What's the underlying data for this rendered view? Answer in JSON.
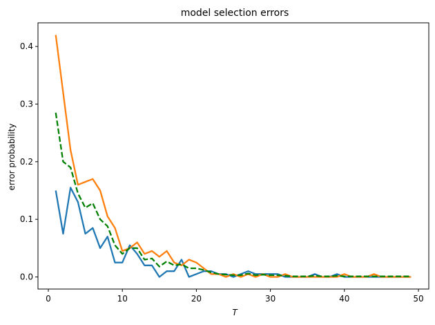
{
  "chart_data": {
    "type": "line",
    "title": "model selection errors",
    "xlabel": "T",
    "ylabel": "error probability",
    "xlim": [
      -1.4,
      51.4
    ],
    "ylim": [
      -0.021,
      0.441
    ],
    "xticks": [
      0,
      10,
      20,
      30,
      40,
      50
    ],
    "yticks": [
      0.0,
      0.1,
      0.2,
      0.3,
      0.4
    ],
    "xtick_labels": [
      "0",
      "10",
      "20",
      "30",
      "40",
      "50"
    ],
    "ytick_labels": [
      "0.0",
      "0.1",
      "0.2",
      "0.3",
      "0.4"
    ],
    "grid": false,
    "legend": null,
    "x": [
      1,
      2,
      3,
      4,
      5,
      6,
      7,
      8,
      9,
      10,
      11,
      12,
      13,
      14,
      15,
      16,
      17,
      18,
      19,
      20,
      21,
      22,
      23,
      24,
      25,
      26,
      27,
      28,
      29,
      30,
      31,
      32,
      33,
      34,
      35,
      36,
      37,
      38,
      39,
      40,
      41,
      42,
      43,
      44,
      45,
      46,
      47,
      48,
      49
    ],
    "series": [
      {
        "color": "#1f77b4",
        "style": "solid",
        "values": [
          0.15,
          0.075,
          0.155,
          0.13,
          0.075,
          0.085,
          0.05,
          0.07,
          0.025,
          0.025,
          0.055,
          0.04,
          0.02,
          0.02,
          0.0,
          0.01,
          0.01,
          0.03,
          0.0,
          0.005,
          0.01,
          0.01,
          0.005,
          0.005,
          0.0,
          0.005,
          0.01,
          0.005,
          0.005,
          0.005,
          0.005,
          0.0,
          0.0,
          0.0,
          0.0,
          0.005,
          0.0,
          0.0,
          0.005,
          0.0,
          0.0,
          0.0,
          0.0,
          0.0,
          0.0,
          0.0,
          0.0,
          0.0,
          0.0
        ]
      },
      {
        "color": "#ff7f0e",
        "style": "solid",
        "values": [
          0.42,
          0.32,
          0.22,
          0.16,
          0.165,
          0.17,
          0.15,
          0.105,
          0.085,
          0.045,
          0.05,
          0.06,
          0.04,
          0.045,
          0.035,
          0.045,
          0.025,
          0.02,
          0.03,
          0.025,
          0.015,
          0.005,
          0.005,
          0.0,
          0.005,
          0.0,
          0.005,
          0.0,
          0.005,
          0.0,
          0.0,
          0.005,
          0.0,
          0.0,
          0.0,
          0.0,
          0.0,
          0.0,
          0.0,
          0.005,
          0.0,
          0.0,
          0.0,
          0.005,
          0.0,
          0.0,
          0.0,
          0.0,
          0.0
        ]
      },
      {
        "color": "#008000",
        "style": "dashed",
        "values": [
          0.285,
          0.2,
          0.19,
          0.145,
          0.12,
          0.128,
          0.1,
          0.088,
          0.055,
          0.04,
          0.05,
          0.05,
          0.03,
          0.032,
          0.018,
          0.027,
          0.02,
          0.022,
          0.015,
          0.015,
          0.012,
          0.008,
          0.005,
          0.004,
          0.003,
          0.003,
          0.006,
          0.003,
          0.004,
          0.003,
          0.003,
          0.002,
          0.001,
          0.001,
          0.001,
          0.002,
          0.001,
          0.001,
          0.002,
          0.001,
          0.001,
          0.001,
          0.001,
          0.001,
          0.001,
          0.001,
          0.001,
          0.001,
          0.001
        ]
      }
    ]
  }
}
